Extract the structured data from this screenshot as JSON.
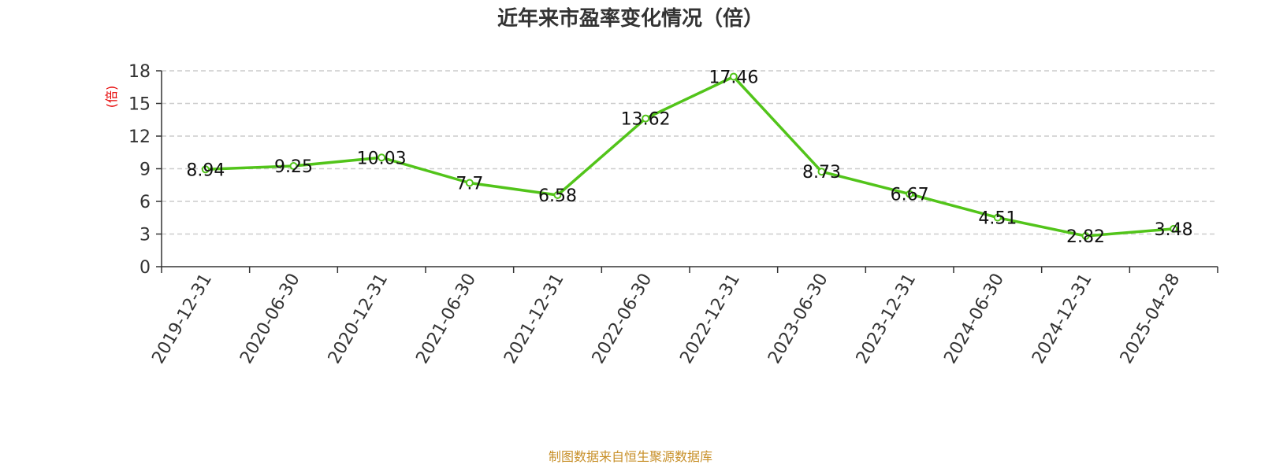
{
  "chart_data": {
    "type": "line",
    "title": "近年来市盈率变化情况（倍）",
    "ylabel": "(倍)",
    "xlabel": "",
    "categories": [
      "2019-12-31",
      "2020-06-30",
      "2020-12-31",
      "2021-06-30",
      "2021-12-31",
      "2022-06-30",
      "2022-12-31",
      "2023-06-30",
      "2023-12-31",
      "2024-06-30",
      "2024-12-31",
      "2025-04-28"
    ],
    "series": [
      {
        "values": [
          8.94,
          9.25,
          10.03,
          7.7,
          6.58,
          13.62,
          17.46,
          8.73,
          6.67,
          4.51,
          2.82,
          3.48
        ]
      }
    ],
    "data_labels": [
      "8.94",
      "9.25",
      "10.03",
      "7.7",
      "6.58",
      "13.62",
      "17.46",
      "8.73",
      "6.67",
      "4.51",
      "2.82",
      "3.48"
    ],
    "ylim": [
      0,
      18
    ],
    "yticks": [
      "0",
      "3",
      "6",
      "9",
      "12",
      "15",
      "18"
    ],
    "grid": "horizontal dashed",
    "legend": "none"
  },
  "source": "制图数据来自恒生聚源数据库",
  "colors": {
    "line": "#52c41a",
    "unit_label": "#e60000",
    "source": "#c8902a",
    "grid": "#cccccc",
    "axis": "#333333"
  }
}
